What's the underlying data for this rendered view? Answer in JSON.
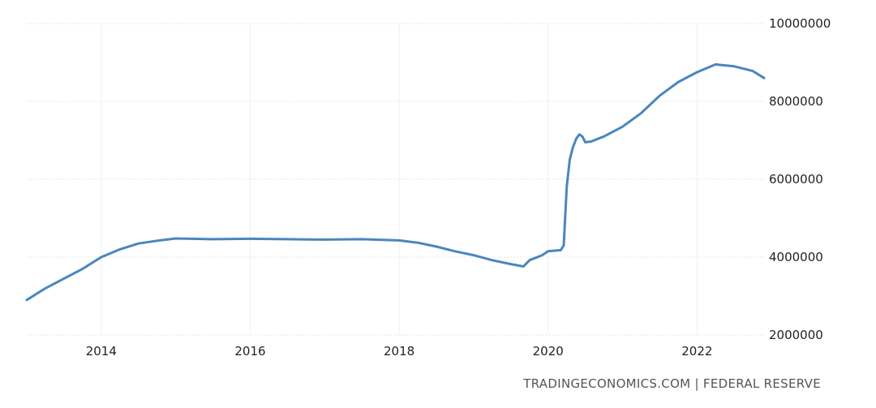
{
  "attribution": "TRADINGECONOMICS.COM | FEDERAL RESERVE",
  "colors": {
    "line": "#4a86be",
    "grid": "#e6e6e6",
    "text": "#222222"
  },
  "chart_data": {
    "type": "line",
    "title": "",
    "xlabel": "",
    "ylabel": "",
    "grid": true,
    "legend": "none",
    "xlim": [
      2013.0,
      2022.9
    ],
    "ylim": [
      2000000,
      10000000
    ],
    "x_ticks": [
      2014,
      2016,
      2018,
      2020,
      2022
    ],
    "x_tick_labels": [
      "2014",
      "2016",
      "2018",
      "2020",
      "2022"
    ],
    "y_ticks": [
      2000000,
      4000000,
      6000000,
      8000000,
      10000000
    ],
    "y_tick_labels": [
      "2000000",
      "4000000",
      "6000000",
      "8000000",
      "10000000"
    ],
    "series": [
      {
        "x": [
          2013.0,
          2013.25,
          2013.5,
          2013.75,
          2014.0,
          2014.25,
          2014.5,
          2014.75,
          2015.0,
          2015.5,
          2016.0,
          2016.5,
          2017.0,
          2017.5,
          2018.0,
          2018.25,
          2018.5,
          2018.75,
          2019.0,
          2019.25,
          2019.5,
          2019.67,
          2019.75,
          2019.92,
          2020.0,
          2020.17,
          2020.21,
          2020.25,
          2020.29,
          2020.33,
          2020.38,
          2020.42,
          2020.46,
          2020.5,
          2020.58,
          2020.75,
          2021.0,
          2021.25,
          2021.5,
          2021.75,
          2022.0,
          2022.25,
          2022.5,
          2022.75,
          2022.9
        ],
        "values": [
          2900000,
          3200000,
          3450000,
          3700000,
          4000000,
          4200000,
          4350000,
          4420000,
          4480000,
          4460000,
          4470000,
          4460000,
          4450000,
          4460000,
          4430000,
          4370000,
          4270000,
          4150000,
          4050000,
          3920000,
          3820000,
          3760000,
          3920000,
          4050000,
          4150000,
          4180000,
          4300000,
          5800000,
          6500000,
          6800000,
          7050000,
          7150000,
          7100000,
          6950000,
          6970000,
          7100000,
          7350000,
          7700000,
          8150000,
          8500000,
          8750000,
          8950000,
          8900000,
          8780000,
          8600000
        ]
      }
    ]
  }
}
